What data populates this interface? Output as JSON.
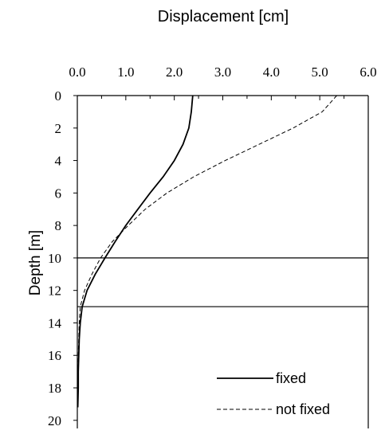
{
  "chart_data": {
    "type": "line",
    "title": "Displacement [cm]",
    "xlabel": "Displacement [cm]",
    "ylabel": "Depth [m]",
    "xlim": [
      0,
      6
    ],
    "ylim": [
      0,
      20
    ],
    "y_inverted": true,
    "x_axis_position": "top",
    "x_ticks": [
      "0.0",
      "1.0",
      "2.0",
      "3.0",
      "4.0",
      "5.0",
      "6.0"
    ],
    "y_ticks": [
      "0",
      "2",
      "4",
      "6",
      "8",
      "10",
      "12",
      "14",
      "16",
      "18",
      "20"
    ],
    "grid": false,
    "legend_position": "bottom-right",
    "reference_lines": [
      {
        "axis": "y",
        "value": 10
      },
      {
        "axis": "y",
        "value": 13
      }
    ],
    "series": [
      {
        "name": "fixed",
        "style": "solid",
        "points": [
          [
            2.38,
            0
          ],
          [
            2.35,
            1
          ],
          [
            2.3,
            2
          ],
          [
            2.18,
            3
          ],
          [
            2.0,
            4
          ],
          [
            1.77,
            5
          ],
          [
            1.5,
            6
          ],
          [
            1.25,
            7
          ],
          [
            1.0,
            8
          ],
          [
            0.78,
            9
          ],
          [
            0.57,
            10
          ],
          [
            0.37,
            11
          ],
          [
            0.2,
            12
          ],
          [
            0.1,
            13
          ],
          [
            0.06,
            14
          ],
          [
            0.04,
            15
          ],
          [
            0.03,
            16
          ],
          [
            0.02,
            17
          ],
          [
            0.02,
            18
          ],
          [
            0.01,
            19.2
          ]
        ]
      },
      {
        "name": "not fixed",
        "style": "dashed",
        "points": [
          [
            5.35,
            0
          ],
          [
            5.05,
            1
          ],
          [
            4.45,
            2
          ],
          [
            3.75,
            3
          ],
          [
            3.05,
            4
          ],
          [
            2.4,
            5
          ],
          [
            1.85,
            6
          ],
          [
            1.4,
            7
          ],
          [
            1.05,
            8
          ],
          [
            0.72,
            9
          ],
          [
            0.48,
            10
          ],
          [
            0.3,
            11
          ],
          [
            0.15,
            12
          ],
          [
            0.06,
            13
          ],
          [
            0.04,
            14
          ],
          [
            0.03,
            15
          ],
          [
            0.02,
            16
          ],
          [
            0.02,
            17
          ],
          [
            0.01,
            18
          ],
          [
            0.01,
            19.2
          ]
        ]
      }
    ]
  }
}
